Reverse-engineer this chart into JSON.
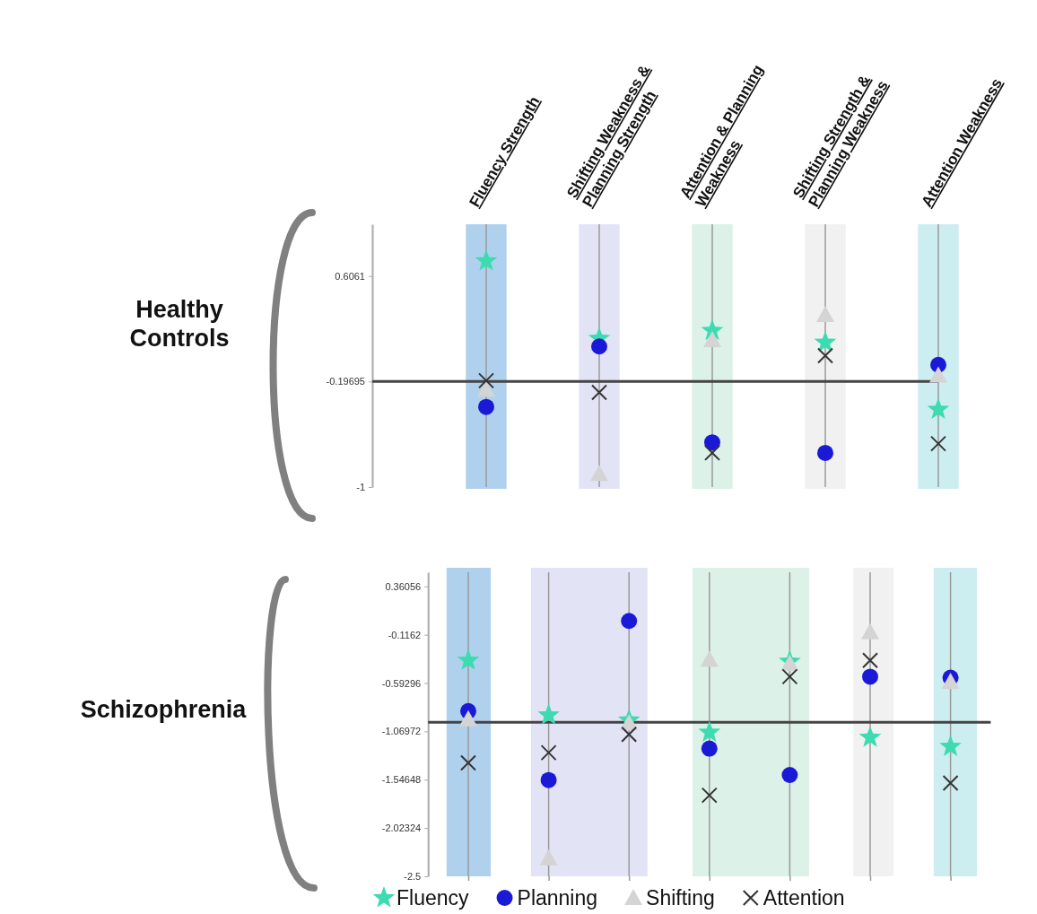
{
  "chart_data": [
    {
      "type": "scatter",
      "title": "Healthy Controls",
      "categories": [
        "Fluency Strength",
        "Shifting Weakness & Planning Strength",
        "Attention & Planning Weakness",
        "Shifting Strength & Planning Weakness",
        "Attention Weakness"
      ],
      "series": [
        {
          "color": "#3ddbb0",
          "marker": "star",
          "values": [
            0.72,
            0.13,
            0.19,
            0.1,
            -0.41
          ]
        },
        {
          "color": "#1a1ad6",
          "marker": "circle",
          "values": [
            -0.39,
            0.07,
            -0.66,
            -0.74,
            -0.07
          ]
        },
        {
          "color": "#d4d4d4",
          "marker": "triangle",
          "values": [
            -0.26,
            -0.9,
            0.12,
            0.31,
            -0.15
          ]
        },
        {
          "color": "#333333",
          "marker": "cross",
          "values": [
            -0.19,
            -0.28,
            -0.74,
            0.0,
            -0.67
          ]
        }
      ],
      "ylim": [
        -1,
        1
      ],
      "yticks": [
        0.6061,
        -0.19695,
        -1
      ],
      "grid": "x",
      "ref_lines": [
        {
          "axis": "y",
          "value": -0.19695,
          "color": "#444444"
        }
      ],
      "bands": [
        {
          "axis": "x",
          "from": "Fluency Strength",
          "to": "Fluency Strength",
          "color": "#b0d1ee"
        },
        {
          "axis": "x",
          "from": "Shifting Weakness & Planning Strength",
          "to": "Shifting Weakness & Planning Strength",
          "color": "#e3e3f6"
        },
        {
          "axis": "x",
          "from": "Attention & Planning Weakness",
          "to": "Attention & Planning Weakness",
          "color": "#dcf1e8"
        },
        {
          "axis": "x",
          "from": "Shifting Strength & Planning Weakness",
          "to": "Shifting Strength & Planning Weakness",
          "color": "#f1f1f1"
        },
        {
          "axis": "x",
          "from": "Attention Weakness",
          "to": "Attention Weakness",
          "color": "#cceef0"
        }
      ]
    },
    {
      "type": "scatter",
      "title": "Schizophrenia",
      "categories": [
        null,
        null,
        null,
        null,
        null,
        null,
        null
      ],
      "series": [
        {
          "name": "Fluency",
          "color": "#3ddbb0",
          "marker": "star",
          "values": [
            -0.37,
            -0.91,
            -0.96,
            -1.08,
            -0.38,
            -1.13,
            -1.22
          ]
        },
        {
          "name": "Planning",
          "color": "#1a1ad6",
          "marker": "circle",
          "values": [
            -0.87,
            -1.55,
            0.02,
            -1.24,
            -1.5,
            -0.53,
            -0.54
          ]
        },
        {
          "name": "Shifting",
          "color": "#d4d4d4",
          "marker": "triangle",
          "values": [
            -0.95,
            -2.32,
            -0.99,
            -0.36,
            -0.4,
            -0.09,
            -0.58
          ]
        },
        {
          "name": "Attention",
          "color": "#333333",
          "marker": "cross",
          "values": [
            -1.38,
            -1.28,
            -1.1,
            -1.7,
            -0.53,
            -0.37,
            -1.58
          ]
        }
      ],
      "ylim": [
        -2.5,
        0.5
      ],
      "yticks": [
        0.36056,
        -0.1162,
        -0.59296,
        -1.06972,
        -1.54648,
        -2.02324,
        -2.5
      ],
      "grid": "x",
      "tick_labels": "y",
      "legend": "bottom",
      "ref_lines": [
        {
          "axis": "y",
          "value": -0.98,
          "color": "#444444"
        }
      ]
    }
  ]
}
